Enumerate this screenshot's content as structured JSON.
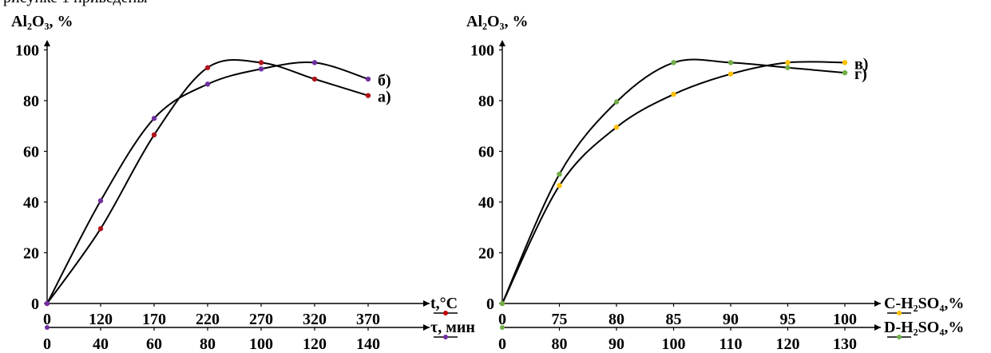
{
  "caption": "рисунке 1 приведены",
  "chart_data": [
    {
      "type": "line",
      "ylabel": "Al₂O₃, %",
      "ylim": [
        0,
        100
      ],
      "yticks": [
        "0",
        "20",
        "40",
        "60",
        "80",
        "100"
      ],
      "grid": false,
      "axes": [
        {
          "label": "t,°C",
          "ticks": [
            "0",
            "120",
            "170",
            "220",
            "270",
            "320",
            "370"
          ],
          "marker_color": "#c00000"
        },
        {
          "label": "τ, мин",
          "ticks": [
            "0",
            "40",
            "60",
            "80",
            "100",
            "120",
            "140"
          ],
          "marker_color": "#7030a0"
        }
      ],
      "series": [
        {
          "name": "а)",
          "axis": "t,°C",
          "color": "#b0131a",
          "x": [
            0,
            120,
            170,
            220,
            270,
            320,
            370
          ],
          "y": [
            0,
            29.5,
            66.5,
            93,
            95,
            88.5,
            82
          ]
        },
        {
          "name": "б)",
          "axis": "τ, мин",
          "color": "#7030a0",
          "x": [
            0,
            40,
            60,
            80,
            100,
            120,
            140
          ],
          "y": [
            0,
            40.5,
            73,
            86.5,
            92.5,
            95,
            88.5
          ]
        }
      ]
    },
    {
      "type": "line",
      "ylabel": "Al₂O₃, %",
      "ylim": [
        0,
        100
      ],
      "yticks": [
        "0",
        "20",
        "40",
        "60",
        "80",
        "100"
      ],
      "grid": false,
      "axes": [
        {
          "label": "C-H₂SO₄,%",
          "ticks": [
            "0",
            "75",
            "80",
            "85",
            "90",
            "95",
            "100"
          ],
          "marker_color": "#ffc000"
        },
        {
          "label": "D-H₂SO₄,%",
          "ticks": [
            "0",
            "80",
            "90",
            "100",
            "110",
            "120",
            "130"
          ],
          "marker_color": "#70ad47"
        }
      ],
      "series": [
        {
          "name": "в)",
          "axis": "C-H₂SO₄,%",
          "color": "#ffc000",
          "x": [
            0,
            75,
            80,
            85,
            90,
            95,
            100
          ],
          "y": [
            0,
            46.5,
            69.5,
            82.5,
            90.5,
            95,
            95
          ]
        },
        {
          "name": "г)",
          "axis": "D-H₂SO₄,%",
          "color": "#70ad47",
          "x": [
            0,
            80,
            90,
            100,
            110,
            120,
            130
          ],
          "y": [
            0,
            51,
            79.5,
            95,
            95,
            93,
            91
          ]
        }
      ]
    }
  ]
}
